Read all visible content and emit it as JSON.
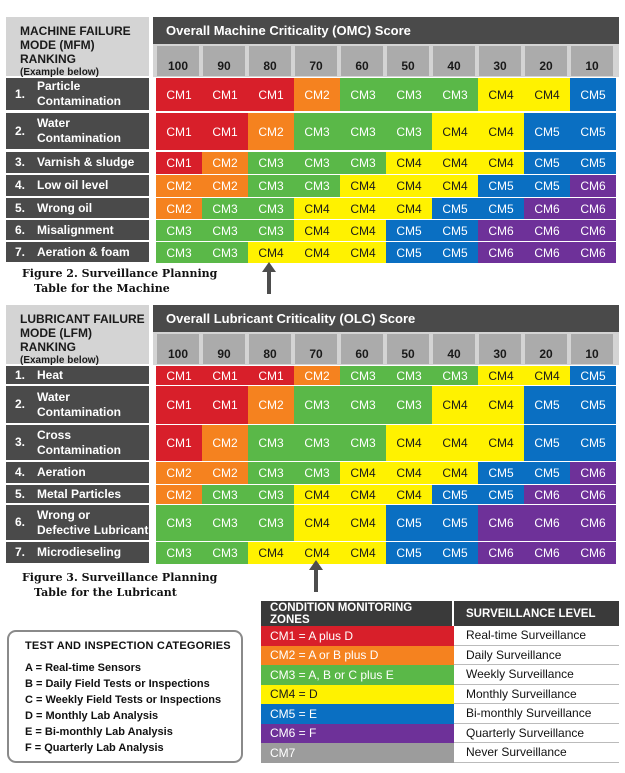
{
  "colors": {
    "CM1": "#d81f2a",
    "CM2": "#f5821f",
    "CM3": "#5ab848",
    "CM4": "#fff200",
    "CM5": "#0a6fc2",
    "CM6": "#6e3199",
    "CM7": "#9c9c9c"
  },
  "scores": [
    "100",
    "90",
    "80",
    "70",
    "60",
    "50",
    "40",
    "30",
    "20",
    "10"
  ],
  "machine": {
    "label_line1": "MACHINE FAILURE",
    "label_line2": "MODE (MFM) RANKING",
    "label_sub": "(Example below)",
    "title": "Overall Machine Criticality (OMC) Score",
    "rows": [
      {
        "num": "1.",
        "line1": "Particle",
        "line2": "Contamination",
        "cells": [
          "CM1",
          "CM1",
          "CM1",
          "CM2",
          "CM3",
          "CM3",
          "CM3",
          "CM4",
          "CM4",
          "CM5"
        ]
      },
      {
        "num": "2.",
        "line1": "Water",
        "line2": "Contamination",
        "cells": [
          "CM1",
          "CM1",
          "CM2",
          "CM3",
          "CM3",
          "CM3",
          "CM4",
          "CM4",
          "CM5",
          "CM5"
        ]
      },
      {
        "num": "3.",
        "line1": "Varnish & sludge",
        "line2": "",
        "cells": [
          "CM1",
          "CM2",
          "CM3",
          "CM3",
          "CM3",
          "CM4",
          "CM4",
          "CM4",
          "CM5",
          "CM5"
        ]
      },
      {
        "num": "4.",
        "line1": "Low oil level",
        "line2": "",
        "cells": [
          "CM2",
          "CM2",
          "CM3",
          "CM3",
          "CM4",
          "CM4",
          "CM4",
          "CM5",
          "CM5",
          "CM6"
        ]
      },
      {
        "num": "5.",
        "line1": "Wrong oil",
        "line2": "",
        "cells": [
          "CM2",
          "CM3",
          "CM3",
          "CM4",
          "CM4",
          "CM4",
          "CM5",
          "CM5",
          "CM6",
          "CM6"
        ]
      },
      {
        "num": "6.",
        "line1": "Misalignment",
        "line2": "",
        "cells": [
          "CM3",
          "CM3",
          "CM3",
          "CM4",
          "CM4",
          "CM5",
          "CM5",
          "CM6",
          "CM6",
          "CM6"
        ]
      },
      {
        "num": "7.",
        "line1": "Aeration & foam",
        "line2": "",
        "cells": [
          "CM3",
          "CM3",
          "CM4",
          "CM4",
          "CM4",
          "CM5",
          "CM5",
          "CM6",
          "CM6",
          "CM6"
        ]
      }
    ],
    "caption_line1": "Figure 2. Surveillance Planning",
    "caption_line2": "Table for the Machine"
  },
  "lubricant": {
    "label_line1": "LUBRICANT FAILURE",
    "label_line2": "MODE (LFM) RANKING",
    "label_sub": "(Example below)",
    "title": "Overall Lubricant Criticality (OLC) Score",
    "rows": [
      {
        "num": "1.",
        "line1": "Heat",
        "line2": "",
        "cells": [
          "CM1",
          "CM1",
          "CM1",
          "CM2",
          "CM3",
          "CM3",
          "CM3",
          "CM4",
          "CM4",
          "CM5"
        ]
      },
      {
        "num": "2.",
        "line1": "Water",
        "line2": "Contamination",
        "cells": [
          "CM1",
          "CM1",
          "CM2",
          "CM3",
          "CM3",
          "CM3",
          "CM4",
          "CM4",
          "CM5",
          "CM5"
        ]
      },
      {
        "num": "3.",
        "line1": "Cross",
        "line2": "Contamination",
        "cells": [
          "CM1",
          "CM2",
          "CM3",
          "CM3",
          "CM3",
          "CM4",
          "CM4",
          "CM4",
          "CM5",
          "CM5"
        ]
      },
      {
        "num": "4.",
        "line1": "Aeration",
        "line2": "",
        "cells": [
          "CM2",
          "CM2",
          "CM3",
          "CM3",
          "CM4",
          "CM4",
          "CM4",
          "CM5",
          "CM5",
          "CM6"
        ]
      },
      {
        "num": "5.",
        "line1": "Metal Particles",
        "line2": "",
        "cells": [
          "CM2",
          "CM3",
          "CM3",
          "CM4",
          "CM4",
          "CM4",
          "CM5",
          "CM5",
          "CM6",
          "CM6"
        ]
      },
      {
        "num": "6.",
        "line1": "Wrong or",
        "line2": "Defective Lubricant",
        "cells": [
          "CM3",
          "CM3",
          "CM3",
          "CM4",
          "CM4",
          "CM5",
          "CM5",
          "CM6",
          "CM6",
          "CM6"
        ]
      },
      {
        "num": "7.",
        "line1": "Microdieseling",
        "line2": "",
        "cells": [
          "CM3",
          "CM3",
          "CM4",
          "CM4",
          "CM4",
          "CM5",
          "CM5",
          "CM6",
          "CM6",
          "CM6"
        ]
      }
    ],
    "caption_line1": "Figure 3. Surveillance Planning",
    "caption_line2": "Table for the Lubricant"
  },
  "zones": {
    "head_left": "CONDITION MONITORING ZONES",
    "head_right": "SURVEILLANCE LEVEL",
    "rows": [
      {
        "code": "CM1",
        "zone": "CM1 = A plus D",
        "level": "Real-time Surveillance"
      },
      {
        "code": "CM2",
        "zone": "CM2 = A or B plus D",
        "level": "Daily Surveillance"
      },
      {
        "code": "CM3",
        "zone": "CM3 = A, B or C plus E",
        "level": "Weekly Surveillance"
      },
      {
        "code": "CM4",
        "zone": "CM4 = D",
        "level": "Monthly Surveillance"
      },
      {
        "code": "CM5",
        "zone": "CM5 = E",
        "level": "Bi-monthly Surveillance"
      },
      {
        "code": "CM6",
        "zone": "CM6 = F",
        "level": "Quarterly Surveillance"
      },
      {
        "code": "CM7",
        "zone": "CM7",
        "level": "Never Surveillance"
      }
    ]
  },
  "categories": {
    "title": "TEST AND INSPECTION CATEGORIES",
    "items": [
      "A = Real-time Sensors",
      "B = Daily Field Tests or Inspections",
      "C = Weekly Field Tests or Inspections",
      "D = Monthly Lab Analysis",
      "E = Bi-monthly Lab Analysis",
      "F = Quarterly Lab Analysis"
    ]
  }
}
